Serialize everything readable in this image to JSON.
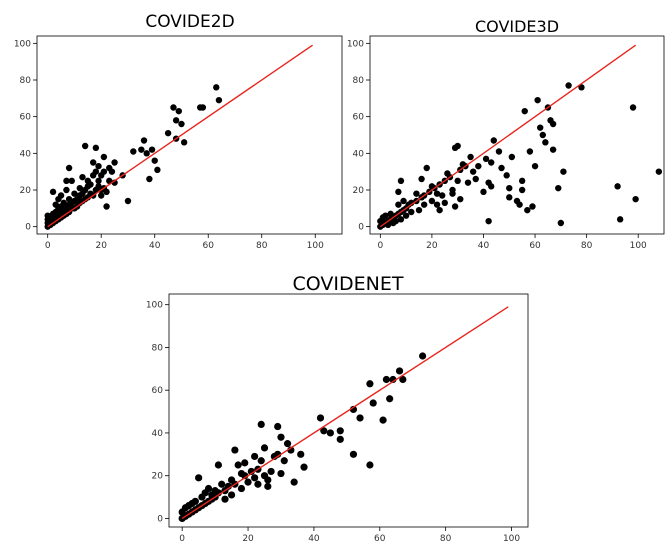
{
  "colors": {
    "points": "#000000",
    "reference_line": "#e8241c",
    "axes": "#000000"
  },
  "chart_data": [
    {
      "type": "scatter",
      "title": "COVIDE2D",
      "xlim": [
        -4,
        110
      ],
      "ylim": [
        -4,
        104
      ],
      "xticks": [
        0,
        20,
        40,
        60,
        80,
        100
      ],
      "yticks": [
        0,
        20,
        40,
        60,
        80,
        100
      ],
      "reference_line": {
        "x": [
          0,
          99
        ],
        "y": [
          0,
          99
        ]
      },
      "points": [
        [
          0,
          0
        ],
        [
          0,
          2
        ],
        [
          0,
          4
        ],
        [
          0,
          6
        ],
        [
          1,
          1
        ],
        [
          1,
          3
        ],
        [
          1,
          5
        ],
        [
          2,
          2
        ],
        [
          2,
          4
        ],
        [
          2,
          7
        ],
        [
          2,
          19
        ],
        [
          3,
          3
        ],
        [
          3,
          5
        ],
        [
          3,
          8
        ],
        [
          3,
          12
        ],
        [
          4,
          4
        ],
        [
          4,
          6
        ],
        [
          4,
          10
        ],
        [
          4,
          15
        ],
        [
          5,
          5
        ],
        [
          5,
          8
        ],
        [
          5,
          11
        ],
        [
          5,
          17
        ],
        [
          6,
          6
        ],
        [
          6,
          9
        ],
        [
          6,
          13
        ],
        [
          7,
          7
        ],
        [
          7,
          10
        ],
        [
          7,
          20
        ],
        [
          7,
          25
        ],
        [
          8,
          8
        ],
        [
          8,
          12
        ],
        [
          8,
          15
        ],
        [
          8,
          32
        ],
        [
          9,
          10
        ],
        [
          9,
          13
        ],
        [
          9,
          25
        ],
        [
          10,
          10
        ],
        [
          10,
          14
        ],
        [
          10,
          18
        ],
        [
          11,
          11
        ],
        [
          11,
          15
        ],
        [
          12,
          13
        ],
        [
          12,
          17
        ],
        [
          12,
          21
        ],
        [
          13,
          14
        ],
        [
          13,
          18
        ],
        [
          13,
          27
        ],
        [
          14,
          15
        ],
        [
          14,
          20
        ],
        [
          14,
          44
        ],
        [
          15,
          16
        ],
        [
          15,
          22
        ],
        [
          15,
          25
        ],
        [
          16,
          18
        ],
        [
          16,
          23
        ],
        [
          17,
          17
        ],
        [
          17,
          28
        ],
        [
          17,
          35
        ],
        [
          18,
          20
        ],
        [
          18,
          30
        ],
        [
          18,
          43
        ],
        [
          19,
          22
        ],
        [
          19,
          33
        ],
        [
          19,
          25
        ],
        [
          20,
          17
        ],
        [
          20,
          20
        ],
        [
          20,
          28
        ],
        [
          21,
          21
        ],
        [
          21,
          30
        ],
        [
          21,
          38
        ],
        [
          22,
          19
        ],
        [
          22,
          11
        ],
        [
          23,
          25
        ],
        [
          23,
          32
        ],
        [
          24,
          30
        ],
        [
          25,
          35
        ],
        [
          25,
          24
        ],
        [
          28,
          28
        ],
        [
          30,
          14
        ],
        [
          32,
          41
        ],
        [
          35,
          42
        ],
        [
          36,
          47
        ],
        [
          37,
          40
        ],
        [
          38,
          26
        ],
        [
          39,
          42
        ],
        [
          40,
          36
        ],
        [
          41,
          31
        ],
        [
          45,
          51
        ],
        [
          47,
          65
        ],
        [
          48,
          58
        ],
        [
          48,
          48
        ],
        [
          49,
          63
        ],
        [
          50,
          56
        ],
        [
          51,
          46
        ],
        [
          57,
          65
        ],
        [
          58,
          65
        ],
        [
          63,
          76
        ],
        [
          64,
          69
        ]
      ]
    },
    {
      "type": "scatter",
      "title": "COVIDE3D",
      "xlim": [
        -4,
        110
      ],
      "ylim": [
        -4,
        104
      ],
      "xticks": [
        0,
        20,
        40,
        60,
        80,
        100
      ],
      "yticks": [
        0,
        20,
        40,
        60,
        80,
        100
      ],
      "reference_line": {
        "x": [
          0,
          99
        ],
        "y": [
          0,
          99
        ]
      },
      "points": [
        [
          0,
          0
        ],
        [
          0,
          3
        ],
        [
          1,
          1
        ],
        [
          1,
          5
        ],
        [
          2,
          2
        ],
        [
          2,
          6
        ],
        [
          3,
          3
        ],
        [
          3,
          1
        ],
        [
          4,
          4
        ],
        [
          4,
          7
        ],
        [
          5,
          5
        ],
        [
          5,
          2
        ],
        [
          6,
          6
        ],
        [
          6,
          3
        ],
        [
          7,
          7
        ],
        [
          7,
          12
        ],
        [
          7,
          19
        ],
        [
          8,
          8
        ],
        [
          8,
          25
        ],
        [
          8,
          4
        ],
        [
          9,
          9
        ],
        [
          9,
          14
        ],
        [
          10,
          10
        ],
        [
          10,
          6
        ],
        [
          11,
          12
        ],
        [
          12,
          8
        ],
        [
          12,
          13
        ],
        [
          14,
          14
        ],
        [
          14,
          18
        ],
        [
          15,
          9
        ],
        [
          16,
          16
        ],
        [
          16,
          26
        ],
        [
          17,
          17
        ],
        [
          17,
          12
        ],
        [
          18,
          32
        ],
        [
          19,
          19
        ],
        [
          20,
          14
        ],
        [
          20,
          22
        ],
        [
          21,
          21
        ],
        [
          22,
          18
        ],
        [
          22,
          12
        ],
        [
          23,
          23
        ],
        [
          23,
          9
        ],
        [
          24,
          17
        ],
        [
          25,
          25
        ],
        [
          25,
          13
        ],
        [
          26,
          29
        ],
        [
          27,
          27
        ],
        [
          28,
          18
        ],
        [
          28,
          20
        ],
        [
          29,
          43
        ],
        [
          29,
          11
        ],
        [
          30,
          25
        ],
        [
          30,
          44
        ],
        [
          31,
          31
        ],
        [
          31,
          15
        ],
        [
          32,
          34
        ],
        [
          33,
          33
        ],
        [
          34,
          24
        ],
        [
          35,
          38
        ],
        [
          36,
          30
        ],
        [
          37,
          26
        ],
        [
          38,
          33
        ],
        [
          40,
          19
        ],
        [
          41,
          37
        ],
        [
          42,
          3
        ],
        [
          42,
          24
        ],
        [
          43,
          22
        ],
        [
          43,
          35
        ],
        [
          44,
          47
        ],
        [
          46,
          41
        ],
        [
          47,
          32
        ],
        [
          49,
          28
        ],
        [
          50,
          16
        ],
        [
          50,
          21
        ],
        [
          51,
          38
        ],
        [
          53,
          14
        ],
        [
          54,
          12
        ],
        [
          55,
          20
        ],
        [
          55,
          25
        ],
        [
          56,
          63
        ],
        [
          57,
          9
        ],
        [
          58,
          41
        ],
        [
          59,
          11
        ],
        [
          60,
          33
        ],
        [
          61,
          69
        ],
        [
          62,
          54
        ],
        [
          63,
          50
        ],
        [
          64,
          46
        ],
        [
          65,
          65
        ],
        [
          66,
          58
        ],
        [
          67,
          56
        ],
        [
          67,
          42
        ],
        [
          69,
          21
        ],
        [
          70,
          2
        ],
        [
          71,
          30
        ],
        [
          73,
          77
        ],
        [
          78,
          76
        ],
        [
          92,
          22
        ],
        [
          93,
          4
        ],
        [
          98,
          65
        ],
        [
          99,
          15
        ],
        [
          108,
          30
        ]
      ]
    },
    {
      "type": "scatter",
      "title": "COVIDENET",
      "xlim": [
        -4,
        105
      ],
      "ylim": [
        -4,
        105
      ],
      "xticks": [
        0,
        20,
        40,
        60,
        80,
        100
      ],
      "yticks": [
        0,
        20,
        40,
        60,
        80,
        100
      ],
      "reference_line": {
        "x": [
          0,
          99
        ],
        "y": [
          0,
          99
        ]
      },
      "points": [
        [
          0,
          0
        ],
        [
          0,
          3
        ],
        [
          1,
          1
        ],
        [
          1,
          5
        ],
        [
          2,
          2
        ],
        [
          2,
          6
        ],
        [
          3,
          3
        ],
        [
          3,
          7
        ],
        [
          4,
          4
        ],
        [
          4,
          8
        ],
        [
          5,
          5
        ],
        [
          5,
          19
        ],
        [
          6,
          6
        ],
        [
          6,
          10
        ],
        [
          7,
          7
        ],
        [
          7,
          12
        ],
        [
          8,
          8
        ],
        [
          8,
          14
        ],
        [
          9,
          9
        ],
        [
          9,
          11
        ],
        [
          10,
          10
        ],
        [
          10,
          13
        ],
        [
          11,
          12
        ],
        [
          11,
          25
        ],
        [
          12,
          16
        ],
        [
          13,
          13
        ],
        [
          13,
          9
        ],
        [
          14,
          15
        ],
        [
          15,
          11
        ],
        [
          15,
          18
        ],
        [
          16,
          16
        ],
        [
          16,
          32
        ],
        [
          17,
          25
        ],
        [
          18,
          14
        ],
        [
          18,
          21
        ],
        [
          19,
          20
        ],
        [
          19,
          26
        ],
        [
          20,
          17
        ],
        [
          21,
          22
        ],
        [
          22,
          19
        ],
        [
          22,
          29
        ],
        [
          23,
          16
        ],
        [
          23,
          23
        ],
        [
          24,
          27
        ],
        [
          24,
          44
        ],
        [
          25,
          20
        ],
        [
          25,
          33
        ],
        [
          26,
          18
        ],
        [
          26,
          15
        ],
        [
          27,
          22
        ],
        [
          28,
          29
        ],
        [
          29,
          30
        ],
        [
          29,
          43
        ],
        [
          30,
          38
        ],
        [
          30,
          21
        ],
        [
          31,
          27
        ],
        [
          32,
          35
        ],
        [
          33,
          32
        ],
        [
          34,
          17
        ],
        [
          36,
          30
        ],
        [
          37,
          24
        ],
        [
          42,
          47
        ],
        [
          43,
          41
        ],
        [
          45,
          40
        ],
        [
          48,
          41
        ],
        [
          48,
          37
        ],
        [
          52,
          51
        ],
        [
          52,
          30
        ],
        [
          54,
          47
        ],
        [
          57,
          63
        ],
        [
          57,
          25
        ],
        [
          58,
          54
        ],
        [
          61,
          46
        ],
        [
          62,
          65
        ],
        [
          63,
          56
        ],
        [
          64,
          65
        ],
        [
          66,
          69
        ],
        [
          67,
          65
        ],
        [
          73,
          76
        ]
      ]
    }
  ]
}
